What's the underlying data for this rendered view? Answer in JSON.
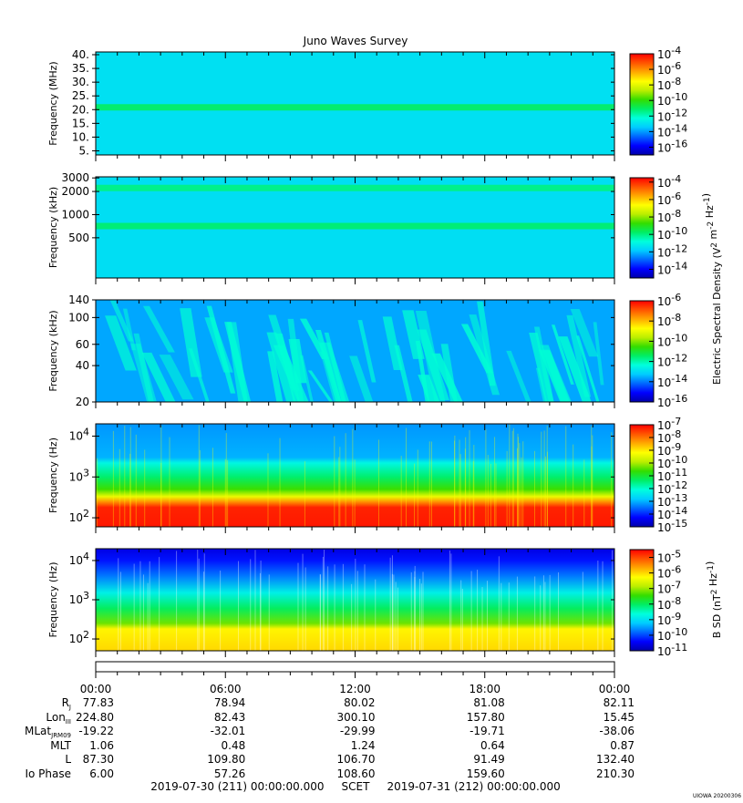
{
  "title": "Juno Waves Survey",
  "colors": {
    "scale": [
      "#0000aa",
      "#0000ff",
      "#0066ff",
      "#00ccff",
      "#00ffdd",
      "#00ee66",
      "#33dd00",
      "#bbee00",
      "#ffff00",
      "#ffaa00",
      "#ff5500",
      "#ff0000"
    ]
  },
  "chart_data": [
    {
      "type": "heatmap",
      "ylabel": "Frequency (MHz)",
      "y_scale": "linear",
      "ylim": [
        3.5,
        41
      ],
      "y_ticks": [
        "40.",
        "35.",
        "30.",
        "25.",
        "20.",
        "15.",
        "10.",
        "5."
      ],
      "y_tick_values": [
        40,
        35,
        30,
        25,
        20,
        15,
        10,
        5
      ],
      "colorbar_ticks": [
        "10^-4",
        "10^-6",
        "10^-8",
        "10^-10",
        "10^-12",
        "10^-14",
        "10^-16"
      ],
      "colorbar_exponents": [
        -4,
        -6,
        -8,
        -10,
        -12,
        -14,
        -16
      ],
      "clim": [
        -17,
        -4
      ],
      "features": [
        {
          "kind": "background_level",
          "value": -13
        },
        {
          "kind": "band",
          "at": 21,
          "value": -11
        }
      ]
    },
    {
      "type": "heatmap",
      "ylabel": "Frequency (kHz)",
      "y_scale": "log",
      "ylim": [
        150,
        3100
      ],
      "y_ticks": [
        "3000",
        "2000",
        "1000",
        "500"
      ],
      "y_tick_values": [
        3000,
        2000,
        1000,
        500
      ],
      "colorbar_ticks": [
        "10^-4",
        "10^-6",
        "10^-8",
        "10^-10",
        "10^-12",
        "10^-14"
      ],
      "colorbar_exponents": [
        -4,
        -6,
        -8,
        -10,
        -12,
        -14
      ],
      "clim": [
        -15,
        -3.5
      ],
      "features": [
        {
          "kind": "background_level",
          "value": -11.5
        },
        {
          "kind": "band",
          "at": 2250,
          "value": -10
        },
        {
          "kind": "band",
          "at": 720,
          "value": -9.8
        }
      ]
    },
    {
      "type": "heatmap",
      "ylabel": "Frequency (kHz)",
      "y_scale": "log",
      "ylim": [
        20,
        140
      ],
      "y_ticks": [
        "140",
        "100",
        "60",
        "40",
        "20"
      ],
      "y_tick_values": [
        140,
        100,
        60,
        40,
        20
      ],
      "colorbar_ticks": [
        "10^-6",
        "10^-8",
        "10^-10",
        "10^-12",
        "10^-14",
        "10^-16"
      ],
      "colorbar_exponents": [
        -6,
        -8,
        -10,
        -12,
        -14,
        -16
      ],
      "clim": [
        -16,
        -6
      ],
      "features": [
        {
          "kind": "background_level",
          "value": -13.6
        },
        {
          "kind": "streaks",
          "value": -12.3
        }
      ]
    },
    {
      "type": "heatmap",
      "ylabel": "Frequency (Hz)",
      "y_scale": "log",
      "ylim": [
        60,
        20000
      ],
      "y_ticks": [
        "10^4",
        "10^3",
        "10^2"
      ],
      "y_tick_values": [
        10000,
        1000,
        100
      ],
      "colorbar_ticks": [
        "10^-7",
        "10^-8",
        "10^-9",
        "10^-10",
        "10^-11",
        "10^-12",
        "10^-13",
        "10^-14",
        "10^-15"
      ],
      "colorbar_exponents": [
        -7,
        -8,
        -9,
        -10,
        -11,
        -12,
        -13,
        -14,
        -15
      ],
      "clim": [
        -15,
        -7
      ],
      "features": [
        {
          "kind": "gradient",
          "points": [
            [
              20000,
              -13.2
            ],
            [
              3000,
              -13
            ],
            [
              2200,
              -12.2
            ],
            [
              1000,
              -11.4
            ],
            [
              500,
              -10.6
            ],
            [
              330,
              -9.4
            ],
            [
              250,
              -8.3
            ],
            [
              180,
              -7.3
            ],
            [
              60,
              -7.2
            ]
          ]
        }
      ]
    },
    {
      "type": "heatmap",
      "ylabel": "Frequency (Hz)",
      "y_scale": "log",
      "ylim": [
        50,
        20000
      ],
      "y_ticks": [
        "10^4",
        "10^3",
        "10^2"
      ],
      "y_tick_values": [
        10000,
        1000,
        100
      ],
      "colorbar_ticks": [
        "10^-5",
        "10^-6",
        "10^-7",
        "10^-8",
        "10^-9",
        "10^-10",
        "10^-11"
      ],
      "colorbar_exponents": [
        -5,
        -6,
        -7,
        -8,
        -9,
        -10,
        -11
      ],
      "clim": [
        -11,
        -4.5
      ],
      "features": [
        {
          "kind": "gradient",
          "points": [
            [
              20000,
              -10.6
            ],
            [
              10000,
              -10.3
            ],
            [
              4000,
              -9.7
            ],
            [
              1500,
              -8.8
            ],
            [
              600,
              -8
            ],
            [
              250,
              -7.2
            ],
            [
              180,
              -6.2
            ],
            [
              50,
              -6
            ]
          ]
        }
      ]
    }
  ],
  "colorbar_labels": {
    "eds": "Electric Spectral Density (V^2 m^-2 Hz^-1)",
    "bsd": "B SD (nT^2 Hz^-1)"
  },
  "ephemeris": {
    "times": [
      "00:00",
      "06:00",
      "12:00",
      "18:00",
      "00:00"
    ],
    "rows": [
      {
        "label": "R",
        "sub": "J",
        "values": [
          "77.83",
          "78.94",
          "80.02",
          "81.08",
          "82.11"
        ]
      },
      {
        "label": "Lon",
        "sub": "III",
        "values": [
          "224.80",
          "82.43",
          "300.10",
          "157.80",
          "15.45"
        ]
      },
      {
        "label": "MLat",
        "sub": "JRM09",
        "values": [
          "-19.22",
          "-32.01",
          "-29.99",
          "-19.71",
          "-38.06"
        ]
      },
      {
        "label": "MLT",
        "sub": "",
        "values": [
          "1.06",
          "0.48",
          "1.24",
          "0.64",
          "0.87"
        ]
      },
      {
        "label": "L",
        "sub": "",
        "values": [
          "87.30",
          "109.80",
          "106.70",
          "91.49",
          "132.40"
        ]
      },
      {
        "label": "Io Phase",
        "sub": "",
        "values": [
          "6.00",
          "57.26",
          "108.60",
          "159.60",
          "210.30"
        ]
      }
    ],
    "footer": "2019-07-30 (211) 00:00:00.000     SCET     2019-07-31 (212) 00:00:00.000"
  },
  "credit": "UIOWA 20200306"
}
